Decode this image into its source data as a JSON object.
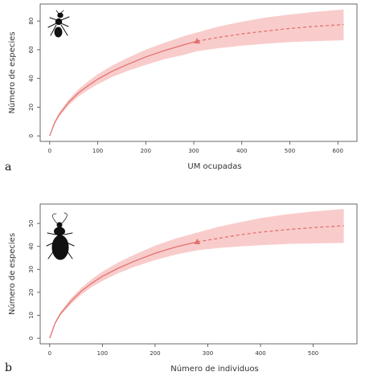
{
  "chart_data": [
    {
      "type": "line",
      "panel_label": "a",
      "xlabel": "UM ocupadas",
      "ylabel": "Número de especies",
      "xlim": [
        0,
        620
      ],
      "ylim": [
        0,
        88
      ],
      "xticks": [
        0,
        100,
        200,
        300,
        400,
        500,
        600
      ],
      "yticks": [
        0,
        20,
        40,
        60,
        80
      ],
      "observed_x": 307,
      "observed_y": 66,
      "x_end": 612,
      "series": [
        {
          "style": "solid",
          "x": [
            0,
            10,
            20,
            40,
            60,
            80,
            100,
            130,
            160,
            200,
            240,
            280,
            307
          ],
          "y": [
            0,
            9,
            15,
            23.5,
            30,
            35,
            39.5,
            45,
            49.5,
            55,
            59.5,
            63.5,
            66
          ]
        },
        {
          "style": "dashed",
          "x": [
            307,
            350,
            400,
            450,
            500,
            550,
            612
          ],
          "y": [
            66,
            68.5,
            71,
            73,
            74.8,
            76.2,
            77.5
          ]
        }
      ],
      "band": {
        "x": [
          0,
          10,
          20,
          40,
          60,
          80,
          100,
          130,
          160,
          200,
          240,
          280,
          307,
          350,
          400,
          450,
          500,
          550,
          612
        ],
        "lower": [
          0,
          8,
          13.5,
          21.5,
          27.5,
          32,
          36,
          41,
          45,
          49.5,
          53.5,
          56.5,
          59,
          61,
          62.8,
          64.2,
          65.3,
          66,
          66.6
        ],
        "upper": [
          0,
          10,
          16.5,
          25.5,
          32.5,
          38,
          43,
          49,
          54,
          60,
          65,
          69.5,
          72,
          76,
          79.5,
          82.5,
          84.5,
          86.3,
          88
        ]
      },
      "colors": {
        "line": "#e0736e",
        "band": "#f9cccc",
        "marker": "#e0736e",
        "axis": "#444444"
      }
    },
    {
      "type": "line",
      "panel_label": "b",
      "xlabel": "Número de individuos",
      "ylabel": "Número de especies",
      "xlim": [
        0,
        565
      ],
      "ylim": [
        0,
        56
      ],
      "xticks": [
        0,
        100,
        200,
        300,
        400,
        500
      ],
      "yticks": [
        0,
        10,
        20,
        30,
        40,
        50
      ],
      "observed_x": 280,
      "observed_y": 42,
      "x_end": 558,
      "series": [
        {
          "style": "solid",
          "x": [
            0,
            10,
            20,
            40,
            60,
            80,
            100,
            130,
            160,
            200,
            240,
            280
          ],
          "y": [
            0,
            6.5,
            10.5,
            16,
            20.5,
            24,
            27,
            30.5,
            33.5,
            37,
            39.8,
            42
          ]
        },
        {
          "style": "dashed",
          "x": [
            280,
            320,
            360,
            400,
            450,
            500,
            558
          ],
          "y": [
            42,
            43.5,
            45,
            46.2,
            47.3,
            48.2,
            49
          ]
        }
      ],
      "band": {
        "x": [
          0,
          10,
          20,
          40,
          60,
          80,
          100,
          130,
          160,
          200,
          240,
          280,
          320,
          360,
          400,
          450,
          500,
          558
        ],
        "lower": [
          0,
          6,
          9.8,
          14.8,
          19,
          22.3,
          25,
          28.3,
          31,
          34,
          36.5,
          38.3,
          39.3,
          40,
          40.5,
          41,
          41.3,
          41.5
        ],
        "upper": [
          0,
          7,
          11.3,
          17.3,
          22,
          25.8,
          29,
          33,
          36.3,
          40.3,
          43.5,
          46,
          48.5,
          50.5,
          52.3,
          54,
          55.2,
          56.3
        ]
      },
      "colors": {
        "line": "#e0736e",
        "band": "#f9cccc",
        "marker": "#e0736e",
        "axis": "#444444"
      }
    }
  ]
}
